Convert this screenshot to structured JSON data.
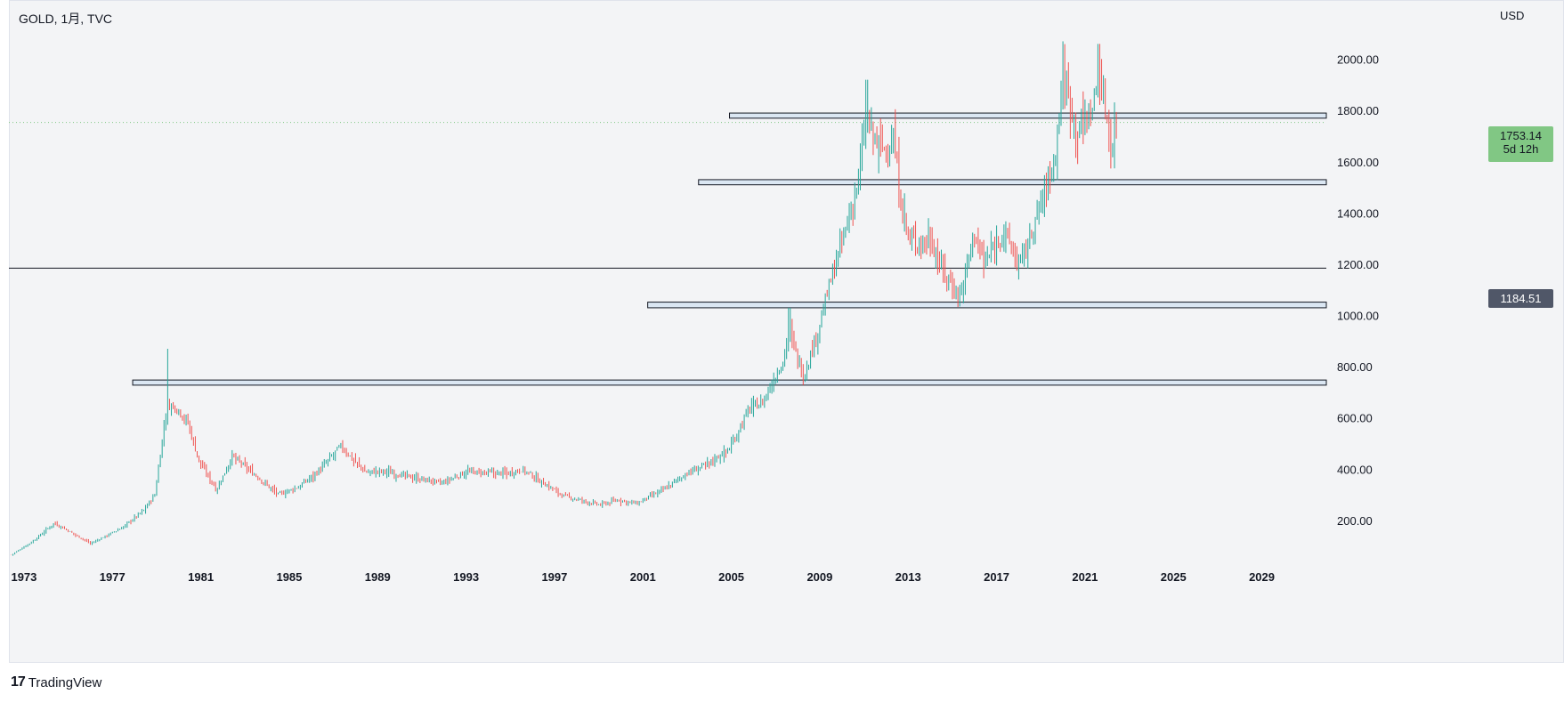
{
  "header": {
    "symbol": "GOLD, 1月, TVC",
    "currency": "USD"
  },
  "price_tag": {
    "price": "1753.14",
    "countdown": "5d 12h",
    "color": "#81c784"
  },
  "level_tag": {
    "price": "1184.51",
    "color": "#505768"
  },
  "brand": {
    "icon": "tradingview-logo-icon",
    "label": "TradingView"
  },
  "colors": {
    "up": "#26a69a",
    "down": "#ef5350",
    "zone_fill": "#dbe7f3",
    "zone_border": "#131722",
    "background": "#f3f4f6"
  },
  "chart_data": {
    "type": "ohlc",
    "title": "GOLD, 1月, TVC",
    "interval": "1M",
    "yaxis": {
      "unit": "USD",
      "ticks": [
        "200.00",
        "400.00",
        "600.00",
        "800.00",
        "1000.00",
        "1200.00",
        "1400.00",
        "1600.00",
        "1800.00",
        "2000.00"
      ],
      "ylim": [
        40,
        2200
      ]
    },
    "xaxis": {
      "ticks": [
        "1973",
        "1977",
        "1981",
        "1985",
        "1989",
        "1993",
        "1997",
        "2001",
        "2005",
        "2009",
        "2013",
        "2017",
        "2021",
        "2025",
        "2029"
      ],
      "xlim": [
        1972.9,
        2032.5
      ]
    },
    "grid": false,
    "last_price": 1753.14,
    "horizontal_line": 1184.51,
    "zones": [
      {
        "from": 1978.5,
        "low": 728,
        "high": 748
      },
      {
        "from": 2001.8,
        "low": 1030,
        "high": 1052
      },
      {
        "from": 2004.1,
        "low": 1510,
        "high": 1530
      },
      {
        "from": 2005.5,
        "low": 1770,
        "high": 1790
      }
    ],
    "anchors": [
      [
        1973.0,
        65
      ],
      [
        1974.0,
        120
      ],
      [
        1974.95,
        190
      ],
      [
        1976.6,
        110
      ],
      [
        1978.0,
        170
      ],
      [
        1979.0,
        240
      ],
      [
        1979.5,
        300
      ],
      [
        1980.05,
        650
      ],
      [
        1980.5,
        640
      ],
      [
        1981.0,
        580
      ],
      [
        1981.5,
        430
      ],
      [
        1982.3,
        320
      ],
      [
        1983.0,
        450
      ],
      [
        1984.0,
        380
      ],
      [
        1985.1,
        300
      ],
      [
        1986.0,
        330
      ],
      [
        1987.0,
        400
      ],
      [
        1987.9,
        490
      ],
      [
        1989.0,
        390
      ],
      [
        1990.0,
        390
      ],
      [
        1991.0,
        370
      ],
      [
        1992.5,
        345
      ],
      [
        1993.6,
        390
      ],
      [
        1994.5,
        385
      ],
      [
        1995.5,
        385
      ],
      [
        1996.1,
        400
      ],
      [
        1997.0,
        350
      ],
      [
        1998.0,
        295
      ],
      [
        1999.6,
        260
      ],
      [
        2000.5,
        280
      ],
      [
        2001.3,
        265
      ],
      [
        2002.5,
        320
      ],
      [
        2003.5,
        380
      ],
      [
        2004.5,
        420
      ],
      [
        2005.5,
        480
      ],
      [
        2006.4,
        640
      ],
      [
        2007.0,
        660
      ],
      [
        2007.9,
        820
      ],
      [
        2008.2,
        940
      ],
      [
        2008.85,
        760
      ],
      [
        2009.5,
        940
      ],
      [
        2010.0,
        1110
      ],
      [
        2010.9,
        1380
      ],
      [
        2011.3,
        1520
      ],
      [
        2011.7,
        1780
      ],
      [
        2011.95,
        1700
      ],
      [
        2012.6,
        1640
      ],
      [
        2012.9,
        1690
      ],
      [
        2013.3,
        1420
      ],
      [
        2013.6,
        1300
      ],
      [
        2014.0,
        1280
      ],
      [
        2014.6,
        1300
      ],
      [
        2015.0,
        1200
      ],
      [
        2015.9,
        1070
      ],
      [
        2016.6,
        1330
      ],
      [
        2017.0,
        1200
      ],
      [
        2017.9,
        1330
      ],
      [
        2018.6,
        1200
      ],
      [
        2019.1,
        1300
      ],
      [
        2019.5,
        1420
      ],
      [
        2020.2,
        1600
      ],
      [
        2020.6,
        1950
      ],
      [
        2021.2,
        1720
      ],
      [
        2021.9,
        1800
      ],
      [
        2022.2,
        1950
      ],
      [
        2022.4,
        1850
      ],
      [
        2022.8,
        1650
      ],
      [
        2023.0,
        1753
      ]
    ]
  }
}
